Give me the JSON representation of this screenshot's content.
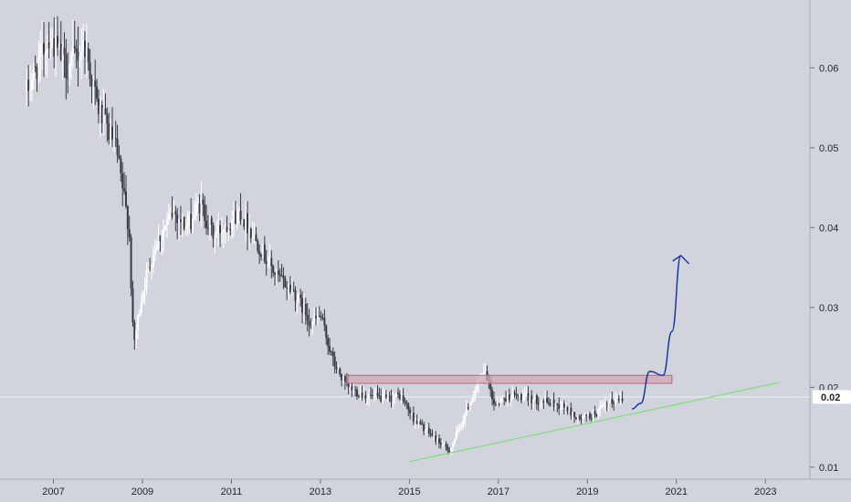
{
  "chart_data": {
    "type": "candlestick",
    "x_ticks": [
      "2007",
      "2009",
      "2011",
      "2013",
      "2015",
      "2017",
      "2019",
      "2021",
      "2023"
    ],
    "y_ticks": [
      "0.01",
      "0.02",
      "0.03",
      "0.04",
      "0.05",
      "0.06"
    ],
    "xlim": [
      2005.8,
      2024.0
    ],
    "ylim": [
      0.0085,
      0.0685
    ],
    "last_price_label": "0.02",
    "last_price": 0.0188,
    "grid": false,
    "colors": {
      "background": "#d1d4dc",
      "up_candle": "#ffffff",
      "down_candle": "#363a45",
      "support_line": "#7ee07a",
      "resistance_zone_fill": "#d4a5b5",
      "resistance_zone_stroke": "#b06a80",
      "projection_path": "#1a2e9e",
      "price_tag_fill": "#ffffff"
    },
    "key_points": [
      {
        "date": 2006.4,
        "close": 0.057
      },
      {
        "date": 2006.9,
        "close": 0.064
      },
      {
        "date": 2007.3,
        "close": 0.06
      },
      {
        "date": 2007.7,
        "close": 0.063
      },
      {
        "date": 2008.0,
        "close": 0.055
      },
      {
        "date": 2008.4,
        "close": 0.05
      },
      {
        "date": 2008.7,
        "close": 0.04
      },
      {
        "date": 2008.8,
        "close": 0.025
      },
      {
        "date": 2009.0,
        "close": 0.032
      },
      {
        "date": 2009.3,
        "close": 0.038
      },
      {
        "date": 2009.7,
        "close": 0.042
      },
      {
        "date": 2010.0,
        "close": 0.04
      },
      {
        "date": 2010.3,
        "close": 0.043
      },
      {
        "date": 2010.6,
        "close": 0.039
      },
      {
        "date": 2011.2,
        "close": 0.042
      },
      {
        "date": 2011.6,
        "close": 0.038
      },
      {
        "date": 2012.0,
        "close": 0.034
      },
      {
        "date": 2012.4,
        "close": 0.032
      },
      {
        "date": 2012.8,
        "close": 0.028
      },
      {
        "date": 2013.0,
        "close": 0.029
      },
      {
        "date": 2013.3,
        "close": 0.023
      },
      {
        "date": 2013.6,
        "close": 0.02
      },
      {
        "date": 2014.0,
        "close": 0.019
      },
      {
        "date": 2014.5,
        "close": 0.0185
      },
      {
        "date": 2014.8,
        "close": 0.019
      },
      {
        "date": 2015.1,
        "close": 0.016
      },
      {
        "date": 2015.5,
        "close": 0.014
      },
      {
        "date": 2015.9,
        "close": 0.012
      },
      {
        "date": 2016.2,
        "close": 0.016
      },
      {
        "date": 2016.5,
        "close": 0.02
      },
      {
        "date": 2016.7,
        "close": 0.022
      },
      {
        "date": 2016.9,
        "close": 0.018
      },
      {
        "date": 2017.3,
        "close": 0.019
      },
      {
        "date": 2017.8,
        "close": 0.0185
      },
      {
        "date": 2018.2,
        "close": 0.018
      },
      {
        "date": 2018.5,
        "close": 0.0175
      },
      {
        "date": 2018.8,
        "close": 0.016
      },
      {
        "date": 2019.1,
        "close": 0.0165
      },
      {
        "date": 2019.5,
        "close": 0.018
      },
      {
        "date": 2019.8,
        "close": 0.0188
      }
    ],
    "annotations": {
      "resistance_zone": {
        "x_from": 2013.6,
        "x_to": 2020.9,
        "y_from": 0.0205,
        "y_to": 0.0215
      },
      "support_trendline": {
        "from": [
          2015.0,
          0.0107
        ],
        "to": [
          2023.3,
          0.0206
        ]
      },
      "projection_path": {
        "points": [
          [
            2020.0,
            0.0173
          ],
          [
            2020.2,
            0.018
          ],
          [
            2020.4,
            0.022
          ],
          [
            2020.7,
            0.0215
          ],
          [
            2020.9,
            0.027
          ],
          [
            2021.1,
            0.0365
          ]
        ],
        "arrow_tip": [
          2021.2,
          0.0365
        ]
      }
    }
  }
}
